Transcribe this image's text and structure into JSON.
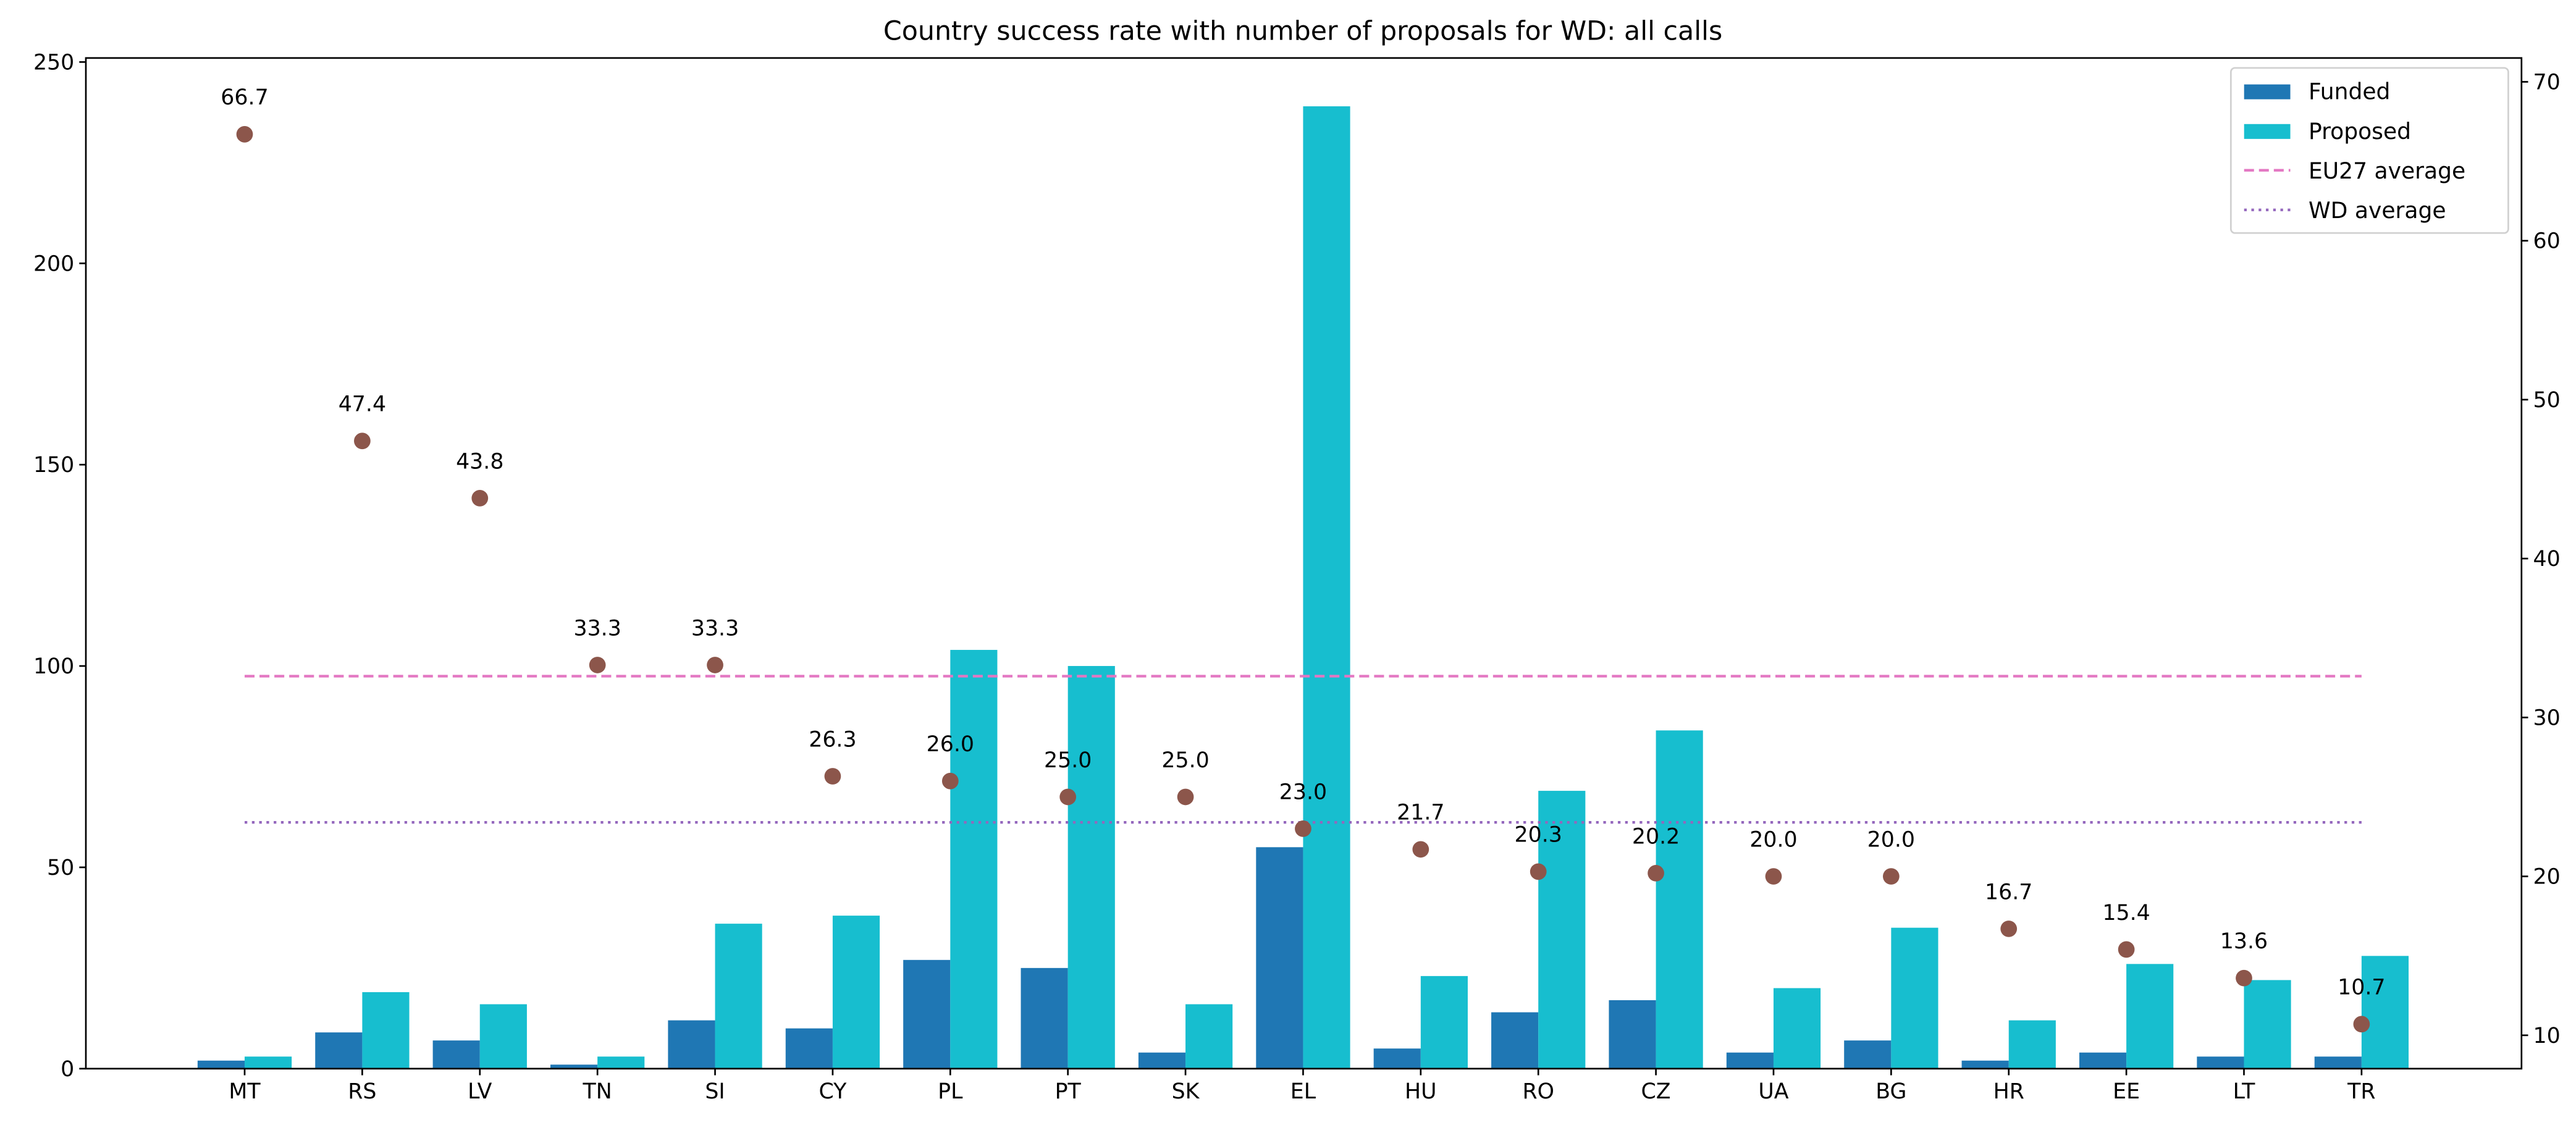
{
  "chart_data": {
    "type": "bar",
    "title": "Country success rate with number of proposals for WD: all calls",
    "xlabel": "",
    "ylabel": "",
    "ylabel_right": "",
    "categories": [
      "MT",
      "RS",
      "LV",
      "TN",
      "SI",
      "CY",
      "PL",
      "PT",
      "SK",
      "EL",
      "HU",
      "RO",
      "CZ",
      "UA",
      "BG",
      "HR",
      "EE",
      "LT",
      "TR"
    ],
    "series": [
      {
        "name": "Funded",
        "type": "bar",
        "axis": "left",
        "color": "#1f77b4",
        "values": [
          2,
          9,
          7,
          1,
          12,
          10,
          27,
          25,
          4,
          55,
          5,
          14,
          17,
          4,
          7,
          2,
          4,
          3,
          3
        ]
      },
      {
        "name": "Proposed",
        "type": "bar",
        "axis": "left",
        "color": "#17becf",
        "values": [
          3,
          19,
          16,
          3,
          36,
          38,
          104,
          100,
          16,
          239,
          23,
          69,
          84,
          20,
          35,
          12,
          26,
          22,
          28
        ]
      },
      {
        "type": "scatter",
        "axis": "right",
        "color": "#8c564b",
        "values": [
          66.7,
          47.4,
          43.8,
          33.3,
          33.3,
          26.3,
          26.0,
          25.0,
          25.0,
          23.0,
          21.7,
          20.3,
          20.2,
          20.0,
          20.0,
          16.7,
          15.4,
          13.6,
          10.7
        ],
        "labels": [
          "66.7",
          "47.4",
          "43.8",
          "33.3",
          "33.3",
          "26.3",
          "26.0",
          "25.0",
          "25.0",
          "23.0",
          "21.7",
          "20.3",
          "20.2",
          "20.0",
          "20.0",
          "16.7",
          "15.4",
          "13.6",
          "10.7"
        ]
      }
    ],
    "reference_lines": [
      {
        "name": "EU27 average",
        "axis": "right",
        "value": 32.6,
        "style": "dashed",
        "color": "#e377c2"
      },
      {
        "name": "WD average",
        "axis": "right",
        "value": 23.4,
        "style": "dotted",
        "color": "#9467bd"
      }
    ],
    "ylim": [
      0,
      251
    ],
    "ylim_right": [
      7.9,
      71.5
    ],
    "yticks": [
      "0",
      "50",
      "100",
      "150",
      "200",
      "250"
    ],
    "yticks_right": [
      "10",
      "20",
      "30",
      "40",
      "50",
      "60",
      "70"
    ],
    "grid": false,
    "legend_placement": "top-right",
    "legend": [
      "Funded",
      "Proposed",
      "EU27 average",
      "WD average"
    ]
  }
}
